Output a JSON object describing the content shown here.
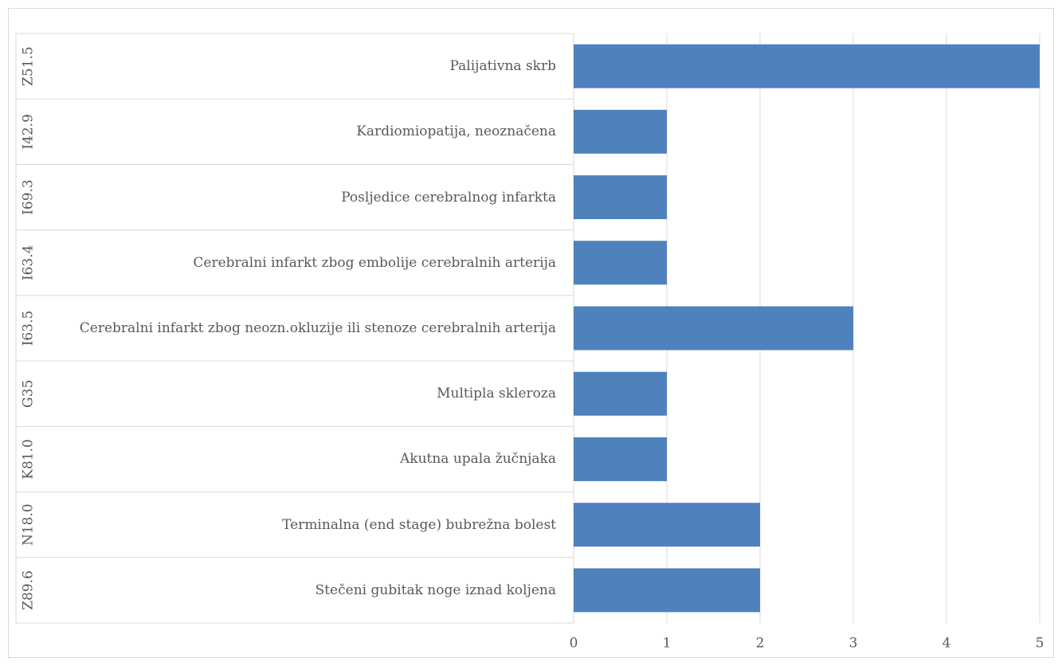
{
  "chart_data": {
    "type": "bar",
    "orientation": "horizontal",
    "groups": [
      "Z51.5",
      "I42.9",
      "I69.3",
      "I63.4",
      "I63.5",
      "G35",
      "K81.0",
      "N18.0",
      "Z89.6"
    ],
    "categories": [
      "Palijativna skrb",
      "Kardiomiopatija, neoznačena",
      "Posljedice cerebralnog infarkta",
      "Cerebralni infarkt zbog embolije cerebralnih arterija",
      "Cerebralni infarkt zbog neozn.okluzije ili stenoze cerebralnih arterija",
      "Multipla skleroza",
      "Akutna upala žučnjaka",
      "Terminalna (end stage) bubrežna bolest",
      "Stečeni gubitak noge iznad koljena"
    ],
    "values": [
      5,
      1,
      1,
      1,
      3,
      1,
      1,
      2,
      2
    ],
    "color": "#4f81bd",
    "xlim": [
      0,
      5
    ],
    "xticks": [
      0,
      1,
      2,
      3,
      4,
      5
    ],
    "grid": true
  }
}
